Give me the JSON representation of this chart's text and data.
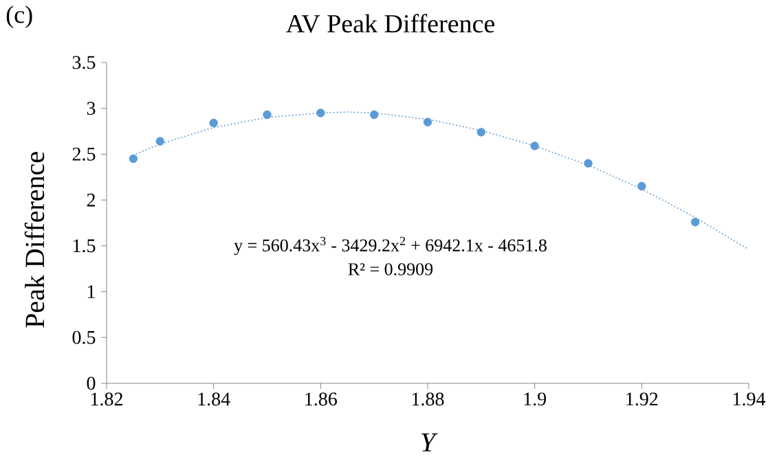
{
  "chart_data": {
    "type": "scatter",
    "title": "AV Peak Difference",
    "xlabel": "Y",
    "ylabel": "Peak Difference",
    "annotations": [
      "(c)",
      "y = 560.43x$^{3}$ - 3429.2x$^{2}$ + 6942.1x - 4651.8",
      "R² = 0.9909"
    ],
    "series": [
      {
        "color": "#5b9bd5",
        "marker": "circle",
        "x": [
          1.825,
          1.83,
          1.84,
          1.85,
          1.86,
          1.87,
          1.88,
          1.89,
          1.9,
          1.91,
          1.92,
          1.93
        ],
        "values": [
          2.45,
          2.64,
          2.84,
          2.93,
          2.95,
          2.93,
          2.85,
          2.74,
          2.59,
          2.4,
          2.15,
          1.76
        ]
      },
      {
        "type": "line",
        "color": "#5b9bd5",
        "line_style": "dotted",
        "marker": "none",
        "x": [
          1.825,
          1.83,
          1.84,
          1.85,
          1.86,
          1.865,
          1.87,
          1.88,
          1.89,
          1.9,
          1.91,
          1.92,
          1.93,
          1.94
        ],
        "values": [
          2.49,
          2.61,
          2.79,
          2.9,
          2.95,
          2.96,
          2.95,
          2.88,
          2.76,
          2.59,
          2.38,
          2.12,
          1.81,
          1.46
        ]
      }
    ],
    "xlim": [
      1.82,
      1.94
    ],
    "ylim": [
      0,
      3.5
    ],
    "xticks": [
      1.82,
      1.84,
      1.86,
      1.88,
      1.9,
      1.92,
      1.94
    ],
    "yticks": [
      0,
      0.5,
      1,
      1.5,
      2,
      2.5,
      3,
      3.5
    ],
    "grid": false
  }
}
